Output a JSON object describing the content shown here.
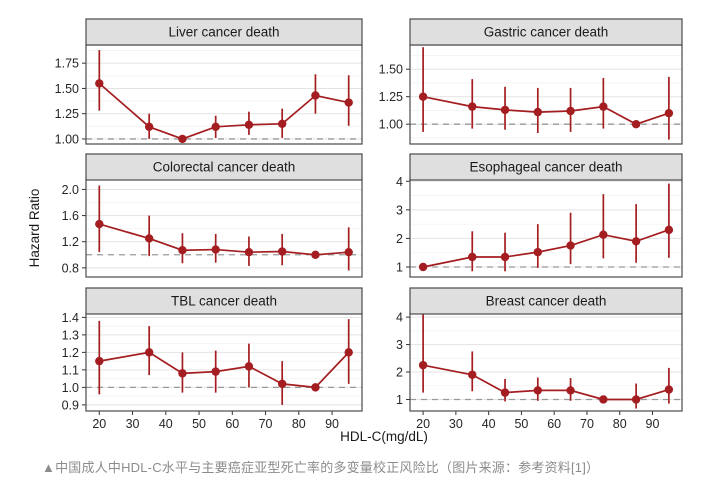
{
  "caption": {
    "text": "▲中国成人中HDL-C水平与主要癌症亚型死亡率的多变量校正风险比（图片来源：参考资料[1]）"
  },
  "chart_data": {
    "type": "line",
    "facets": "2x3 panels, shared x axis, per-panel y axis",
    "title": "",
    "xlabel": "HDL-C(mg/dL)",
    "ylabel": "Hazard Ratio",
    "x": [
      20,
      35,
      45,
      55,
      65,
      75,
      85,
      95
    ],
    "x_ticks": [
      20,
      30,
      40,
      50,
      60,
      70,
      80,
      90
    ],
    "x_range": [
      16,
      99
    ],
    "reference_line_y": 1.0,
    "grid": "major and minor horizontal gridlines, no vertical gridlines",
    "colors": {
      "series": "#A41D20",
      "strip_bg": "#DFDFDF",
      "strip_border": "#4A4A4A",
      "panel_border": "#4A4A4A",
      "grid_major": "#E3E3E3",
      "grid_minor": "#F2F2F2",
      "ref_dash": "#999999",
      "tick_text": "#262626",
      "title_text": "#1A1A1A",
      "caption_text": "#8C8C8C"
    },
    "panels": [
      {
        "title": "Liver cancer death",
        "ylim": [
          0.95,
          1.93
        ],
        "yticks": [
          1.0,
          1.25,
          1.5,
          1.75
        ],
        "ytick_labels": [
          "1.00",
          "1.25",
          "1.50",
          "1.75"
        ],
        "hr": [
          1.55,
          1.12,
          1.0,
          1.12,
          1.14,
          1.15,
          1.43,
          1.36
        ],
        "ci_low": [
          1.28,
          1.0,
          1.0,
          1.01,
          1.04,
          1.01,
          1.25,
          1.13
        ],
        "ci_high": [
          1.88,
          1.25,
          1.0,
          1.23,
          1.27,
          1.3,
          1.64,
          1.63
        ]
      },
      {
        "title": "Gastric cancer death",
        "ylim": [
          0.82,
          1.72
        ],
        "yticks": [
          1.0,
          1.25,
          1.5
        ],
        "ytick_labels": [
          "1.00",
          "1.25",
          "1.50"
        ],
        "hr": [
          1.25,
          1.16,
          1.13,
          1.11,
          1.12,
          1.16,
          1.0,
          1.1
        ],
        "ci_low": [
          0.93,
          0.96,
          0.95,
          0.92,
          0.93,
          0.96,
          1.0,
          0.86
        ],
        "ci_high": [
          1.7,
          1.41,
          1.34,
          1.33,
          1.33,
          1.42,
          1.0,
          1.43
        ]
      },
      {
        "title": "Colorectal cancer death",
        "ylim": [
          0.66,
          2.16
        ],
        "yticks": [
          0.8,
          1.2,
          1.6,
          2.0
        ],
        "ytick_labels": [
          "0.8",
          "1.2",
          "1.6",
          "2.0"
        ],
        "hr": [
          1.47,
          1.25,
          1.07,
          1.08,
          1.04,
          1.05,
          1.0,
          1.04
        ],
        "ci_low": [
          1.04,
          0.98,
          0.87,
          0.88,
          0.83,
          0.84,
          1.0,
          0.76
        ],
        "ci_high": [
          2.06,
          1.6,
          1.33,
          1.32,
          1.28,
          1.32,
          1.0,
          1.42
        ]
      },
      {
        "title": "Esophageal cancer death",
        "ylim": [
          0.65,
          4.08
        ],
        "yticks": [
          1,
          2,
          3,
          4
        ],
        "ytick_labels": [
          "1",
          "2",
          "3",
          "4"
        ],
        "hr": [
          1.0,
          1.35,
          1.35,
          1.52,
          1.75,
          2.13,
          1.9,
          2.3
        ],
        "ci_low": [
          1.0,
          0.85,
          0.85,
          0.97,
          1.1,
          1.3,
          1.15,
          1.32
        ],
        "ci_high": [
          1.0,
          2.25,
          2.2,
          2.5,
          2.9,
          3.55,
          3.2,
          3.92
        ]
      },
      {
        "title": "TBL cancer death",
        "ylim": [
          0.865,
          1.425
        ],
        "yticks": [
          0.9,
          1.0,
          1.1,
          1.2,
          1.3,
          1.4
        ],
        "ytick_labels": [
          "0.9",
          "1.0",
          "1.1",
          "1.2",
          "1.3",
          "1.4"
        ],
        "hr": [
          1.15,
          1.2,
          1.08,
          1.09,
          1.12,
          1.02,
          1.0,
          1.2
        ],
        "ci_low": [
          0.96,
          1.07,
          0.97,
          0.97,
          1.0,
          0.9,
          1.0,
          1.02
        ],
        "ci_high": [
          1.38,
          1.35,
          1.2,
          1.21,
          1.25,
          1.15,
          1.0,
          1.39
        ]
      },
      {
        "title": "Breast cancer death",
        "ylim": [
          0.58,
          4.15
        ],
        "yticks": [
          1,
          2,
          3,
          4
        ],
        "ytick_labels": [
          "1",
          "2",
          "3",
          "4"
        ],
        "hr": [
          2.25,
          1.9,
          1.25,
          1.33,
          1.33,
          1.0,
          1.0,
          1.36
        ],
        "ci_low": [
          1.25,
          1.3,
          0.93,
          0.95,
          0.95,
          1.0,
          0.67,
          0.85
        ],
        "ci_high": [
          4.1,
          2.75,
          1.75,
          1.8,
          1.78,
          1.0,
          1.58,
          2.15
        ]
      }
    ]
  }
}
